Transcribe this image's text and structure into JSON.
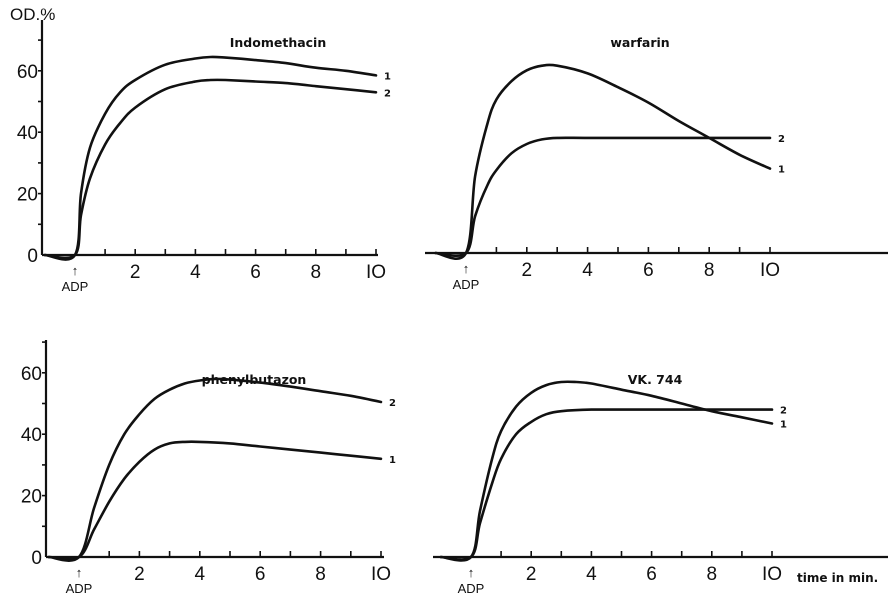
{
  "figure": {
    "ylabel": "OD.%",
    "xlabel": "time in min.",
    "x_marker_label": "ADP",
    "x_marker_symbol": "↑"
  },
  "chart_data": [
    {
      "type": "line",
      "title": "Indomethacin",
      "xticks": [
        "2",
        "4",
        "6",
        "8",
        "IO"
      ],
      "yticks": [
        "0",
        "20",
        "40",
        "60"
      ],
      "xlim": [
        -1.2,
        10.4
      ],
      "ylim": [
        0,
        70
      ],
      "series": [
        {
          "name": "1",
          "x": [
            -1,
            0,
            0.2,
            0.5,
            1,
            1.5,
            2,
            3,
            4,
            4.5,
            5,
            6,
            7,
            8,
            9,
            10
          ],
          "y": [
            0,
            0,
            20,
            35,
            46,
            53,
            57,
            62,
            64,
            64.5,
            64.3,
            63.5,
            62.5,
            61,
            60,
            58.5
          ]
        },
        {
          "name": "2",
          "x": [
            -1,
            0,
            0.2,
            0.5,
            1,
            1.5,
            2,
            3,
            4,
            4.5,
            5,
            6,
            7,
            8,
            9,
            10
          ],
          "y": [
            0,
            0,
            13,
            25,
            36,
            43,
            48,
            54,
            56.5,
            57,
            57,
            56.5,
            56,
            55,
            54,
            53
          ]
        }
      ]
    },
    {
      "type": "line",
      "title": "warfarin",
      "xticks": [
        "2",
        "4",
        "6",
        "8",
        "IO"
      ],
      "yticks": [],
      "xlim": [
        -1.2,
        10.4
      ],
      "ylim": [
        0,
        70
      ],
      "series": [
        {
          "name": "1",
          "x": [
            -1,
            0,
            0.3,
            0.7,
            1,
            1.5,
            2,
            2.5,
            3,
            4,
            5,
            6,
            7,
            8,
            9,
            10
          ],
          "y": [
            0,
            0,
            25,
            42,
            50,
            56,
            59.5,
            61,
            61,
            58.5,
            54,
            49,
            43,
            37.5,
            32,
            27.5
          ]
        },
        {
          "name": "2",
          "x": [
            -1,
            0,
            0.3,
            0.7,
            1,
            1.5,
            2,
            2.5,
            3,
            4,
            6,
            8,
            10
          ],
          "y": [
            0,
            0,
            12,
            22,
            27,
            32.5,
            35.5,
            37,
            37.5,
            37.5,
            37.5,
            37.5,
            37.5
          ]
        }
      ]
    },
    {
      "type": "line",
      "title": "phenylbutazon",
      "xticks": [
        "2",
        "4",
        "6",
        "8",
        "IO"
      ],
      "yticks": [
        "0",
        "20",
        "40",
        "60"
      ],
      "xlim": [
        -1.2,
        10.4
      ],
      "ylim": [
        0,
        70
      ],
      "series": [
        {
          "name": "1",
          "x": [
            -1,
            0,
            0.5,
            1,
            1.5,
            2,
            2.5,
            3,
            3.5,
            4,
            5,
            6,
            7,
            8,
            9,
            10
          ],
          "y": [
            0,
            0,
            9,
            18,
            25.5,
            31,
            35,
            37,
            37.5,
            37.5,
            37,
            36,
            35,
            34,
            33,
            32
          ]
        },
        {
          "name": "2",
          "x": [
            -1,
            0,
            0.5,
            1,
            1.5,
            2,
            2.5,
            3,
            3.5,
            4,
            4.5,
            5,
            6,
            7,
            8,
            9,
            10
          ],
          "y": [
            0,
            0,
            16,
            30,
            40,
            46.5,
            51.5,
            54.5,
            56.5,
            57.5,
            58,
            57.8,
            56.8,
            55.5,
            54,
            52.5,
            50.5
          ]
        }
      ]
    },
    {
      "type": "line",
      "title": "VK. 744",
      "xticks": [
        "2",
        "4",
        "6",
        "8",
        "IO"
      ],
      "yticks": [],
      "xlim": [
        -1.2,
        10.4
      ],
      "ylim": [
        0,
        70
      ],
      "series": [
        {
          "name": "1",
          "x": [
            -1,
            0,
            0.3,
            0.7,
            1,
            1.5,
            2,
            2.5,
            3,
            3.5,
            4,
            5,
            6,
            7,
            8,
            9,
            10
          ],
          "y": [
            0,
            0,
            15,
            32,
            41,
            49,
            53.5,
            56,
            57,
            57,
            56.5,
            54.5,
            52.5,
            50,
            47.5,
            45.5,
            43.5
          ]
        },
        {
          "name": "2",
          "x": [
            -1,
            0,
            0.3,
            0.7,
            1,
            1.5,
            2,
            2.5,
            3,
            4,
            6,
            8,
            10
          ],
          "y": [
            0,
            0,
            11,
            24,
            32,
            40,
            44,
            46.5,
            47.5,
            48,
            48,
            48,
            48
          ]
        }
      ]
    }
  ]
}
